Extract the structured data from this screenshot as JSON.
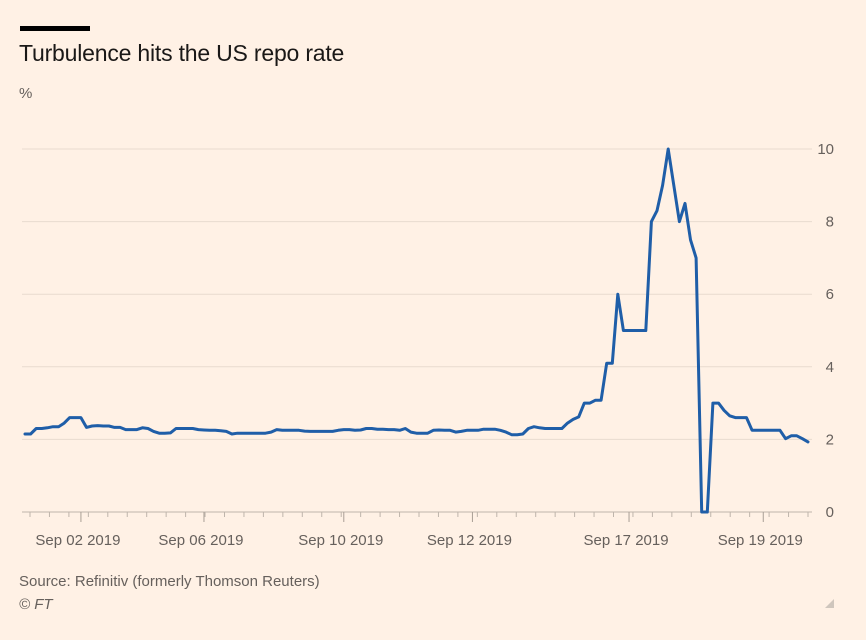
{
  "header": {
    "title": "Turbulence hits the US repo rate",
    "unit": "%"
  },
  "footer": {
    "source": "Source: Refinitiv (formerly Thomson Reuters)",
    "credit": "© FT"
  },
  "colors": {
    "background": "#fff1e5",
    "line": "#1f5ea8",
    "grid": "#e8dbcf",
    "axis_text": "#66605c"
  },
  "chart_data": {
    "type": "line",
    "title": "Turbulence hits the US repo rate",
    "ylabel": "%",
    "ylim": [
      0,
      10
    ],
    "yticks": [
      0,
      2,
      4,
      6,
      8,
      10
    ],
    "y_axis_side": "right",
    "grid": true,
    "xlim": [
      0,
      137
    ],
    "xticks": [
      {
        "x": 10,
        "label": "Sep 02 2019"
      },
      {
        "x": 32,
        "label": "Sep 06 2019"
      },
      {
        "x": 57,
        "label": "Sep 10 2019"
      },
      {
        "x": 80,
        "label": "Sep 12 2019"
      },
      {
        "x": 108,
        "label": "Sep 17 2019"
      },
      {
        "x": 132,
        "label": "Sep 19 2019"
      }
    ],
    "series": [
      {
        "values": [
          [
            0,
            2.15
          ],
          [
            1,
            2.15
          ],
          [
            2,
            2.3
          ],
          [
            3,
            2.3
          ],
          [
            4,
            2.32
          ],
          [
            5,
            2.35
          ],
          [
            6,
            2.35
          ],
          [
            7,
            2.45
          ],
          [
            8,
            2.6
          ],
          [
            9,
            2.6
          ],
          [
            10,
            2.6
          ],
          [
            11,
            2.33
          ],
          [
            12,
            2.37
          ],
          [
            13,
            2.38
          ],
          [
            14,
            2.37
          ],
          [
            15,
            2.37
          ],
          [
            16,
            2.33
          ],
          [
            17,
            2.33
          ],
          [
            18,
            2.27
          ],
          [
            19,
            2.27
          ],
          [
            20,
            2.27
          ],
          [
            21,
            2.32
          ],
          [
            22,
            2.3
          ],
          [
            23,
            2.22
          ],
          [
            24,
            2.17
          ],
          [
            25,
            2.17
          ],
          [
            26,
            2.18
          ],
          [
            27,
            2.3
          ],
          [
            28,
            2.3
          ],
          [
            29,
            2.3
          ],
          [
            30,
            2.3
          ],
          [
            31,
            2.27
          ],
          [
            32,
            2.26
          ],
          [
            33,
            2.25
          ],
          [
            34,
            2.25
          ],
          [
            35,
            2.24
          ],
          [
            36,
            2.22
          ],
          [
            37,
            2.15
          ],
          [
            38,
            2.17
          ],
          [
            39,
            2.17
          ],
          [
            40,
            2.17
          ],
          [
            41,
            2.17
          ],
          [
            42,
            2.17
          ],
          [
            43,
            2.17
          ],
          [
            44,
            2.2
          ],
          [
            45,
            2.27
          ],
          [
            46,
            2.25
          ],
          [
            47,
            2.25
          ],
          [
            48,
            2.25
          ],
          [
            49,
            2.25
          ],
          [
            50,
            2.23
          ],
          [
            51,
            2.22
          ],
          [
            52,
            2.22
          ],
          [
            53,
            2.22
          ],
          [
            54,
            2.22
          ],
          [
            55,
            2.22
          ],
          [
            56,
            2.25
          ],
          [
            57,
            2.27
          ],
          [
            58,
            2.27
          ],
          [
            59,
            2.25
          ],
          [
            60,
            2.26
          ],
          [
            61,
            2.3
          ],
          [
            62,
            2.3
          ],
          [
            63,
            2.28
          ],
          [
            64,
            2.28
          ],
          [
            65,
            2.27
          ],
          [
            66,
            2.27
          ],
          [
            67,
            2.25
          ],
          [
            68,
            2.3
          ],
          [
            69,
            2.2
          ],
          [
            70,
            2.17
          ],
          [
            71,
            2.17
          ],
          [
            72,
            2.17
          ],
          [
            73,
            2.25
          ],
          [
            74,
            2.26
          ],
          [
            75,
            2.25
          ],
          [
            76,
            2.25
          ],
          [
            77,
            2.2
          ],
          [
            78,
            2.22
          ],
          [
            79,
            2.25
          ],
          [
            80,
            2.25
          ],
          [
            81,
            2.25
          ],
          [
            82,
            2.28
          ],
          [
            83,
            2.28
          ],
          [
            84,
            2.28
          ],
          [
            85,
            2.25
          ],
          [
            86,
            2.2
          ],
          [
            87,
            2.13
          ],
          [
            88,
            2.13
          ],
          [
            89,
            2.15
          ],
          [
            90,
            2.3
          ],
          [
            91,
            2.35
          ],
          [
            92,
            2.32
          ],
          [
            93,
            2.3
          ],
          [
            94,
            2.3
          ],
          [
            95,
            2.3
          ],
          [
            96,
            2.3
          ],
          [
            97,
            2.45
          ],
          [
            98,
            2.55
          ],
          [
            99,
            2.62
          ],
          [
            100,
            3.0
          ],
          [
            101,
            3.0
          ],
          [
            102,
            3.08
          ],
          [
            103,
            3.08
          ],
          [
            104,
            4.1
          ],
          [
            105,
            4.1
          ],
          [
            106,
            6.0
          ],
          [
            107,
            5.0
          ],
          [
            108,
            5.0
          ],
          [
            109,
            5.0
          ],
          [
            110,
            5.0
          ],
          [
            111,
            5.0
          ],
          [
            112,
            8.0
          ],
          [
            113,
            8.3
          ],
          [
            114,
            9.0
          ],
          [
            115,
            10.0
          ],
          [
            116,
            9.0
          ],
          [
            117,
            8.0
          ],
          [
            118,
            8.5
          ],
          [
            119,
            7.5
          ],
          [
            120,
            7.0
          ],
          [
            121,
            0.0
          ],
          [
            122,
            0.0
          ],
          [
            123,
            3.0
          ],
          [
            124,
            3.0
          ],
          [
            125,
            2.8
          ],
          [
            126,
            2.65
          ],
          [
            127,
            2.6
          ],
          [
            128,
            2.6
          ],
          [
            129,
            2.6
          ],
          [
            130,
            2.25
          ],
          [
            131,
            2.25
          ],
          [
            132,
            2.25
          ],
          [
            133,
            2.25
          ],
          [
            134,
            2.25
          ],
          [
            135,
            2.25
          ],
          [
            136,
            2.02
          ],
          [
            137,
            2.1
          ],
          [
            138,
            2.1
          ],
          [
            139,
            2.02
          ],
          [
            140,
            1.93
          ]
        ]
      }
    ]
  }
}
